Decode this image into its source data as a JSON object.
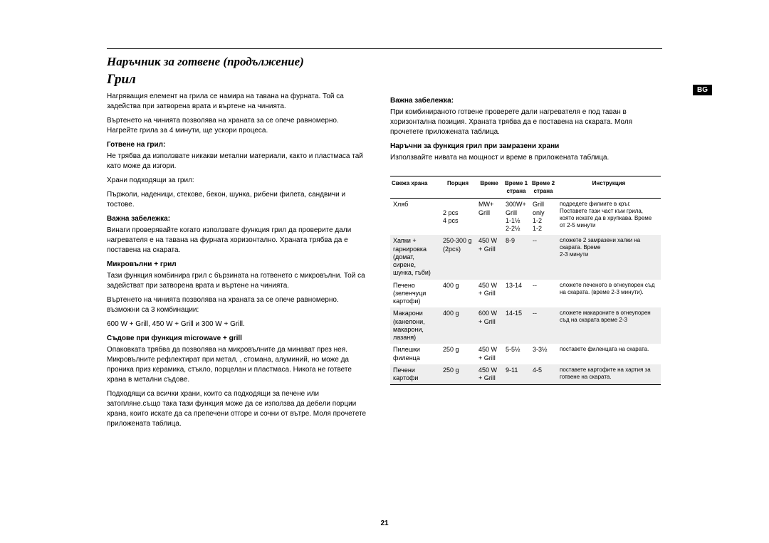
{
  "page_number": "21",
  "lang_tag": "BG",
  "title_cont": "Наръчник за готвене (продължение)",
  "section_title": "Грил",
  "left": {
    "intro1": "Нагряващия елемент на грила се намира на тавана на фурната. Той са задейства при затворена врата и въртене на чинията.",
    "intro2": "Въртенето на чинията позволява на храната за  се опече равномерно. Нагрейте грила за 4 минути, ще ускори процеса.",
    "h1": "Готвене на грил:",
    "p1a": "Не трябва да използвате никакви метални материали, както и пластмаса тай като може да изгори.",
    "p1b": "Храни подходящи за грил:",
    "p1c": "Пържоли, наденици, стекове, бекон, шунка, рибени филета, сандвичи и тостове.",
    "h2": "Важна забележка:",
    "p2": "Винаги проверявайте когато използвате функция грил да проверите дали нагревателя е на тавана на фурната хоризонтално. Храната трябва да е поставена на скарата.",
    "h3": "Микровълни  + грил",
    "p3a": "Тази функция комбинира грил с бързината на готвенето с микровълни. Той са задействат при затворена врата и въртене на чинията.",
    "p3b": "Въртенето на чинията позволява на храната за  се опече равномерно. възможни са 3 комбинации:",
    "p3c": "600 W + Grill, 450 W + Grill и 300 W + Grill.",
    "h4": "Съдове при функция  microwave + grill",
    "p4a": "Опаковката трябва да позволява на микровълните да минават през нея. Микровълните рефлектират при метал, , стомана, алуминий, но може да проника приз керамика, стъкло, порцелан и пластмаса. Никога не гответе храна в метални съдове.",
    "p4b": "Подходящи са всички храни, които са подходящи за печене или затопляне.също така тази функция може да се използва да дебели порции храна, които искате да са препечени отгоре и сочни от вътре.  Моля прочетете приложената таблица."
  },
  "right": {
    "h1": "Важна забележка:",
    "p1": "При комбинираното готвене проверете дали нагревателя е под таван в хоризонтална позиция. Храната трябва да е поставена на скарата.  Моля прочетете приложената таблица.",
    "h2": "Наръчни за функция грил при замразени храни",
    "p2": "Използвайте нивата на мощност и време в приложената таблица."
  },
  "table": {
    "headers": [
      "Свежа храна",
      "Порция",
      "Време",
      "Време 1 страна",
      "Време 2 страна",
      "Инструкция"
    ],
    "rows": [
      {
        "c0": "Хляб",
        "c1": "\n2 pcs\n4 pcs",
        "c2": "MW+\nGrill",
        "c3": "300W+\nGrill\n1-1½\n2-2½",
        "c4": "Grill\nonly\n1-2\n1-2",
        "c5": "подредете филиите в кръг. Поставете тази част към грила, която искате да в хрупкава. Време от 2-5 минути"
      },
      {
        "c0": "Хапки + гарнировка (домат, сирене, шунка, гъби)",
        "c1": "250-300 g\n(2pcs)",
        "c2": "450 W\n+ Grill",
        "c3": "8-9",
        "c4": "--",
        "c5": "сложете  2 замразени халки на скарата. Време\n2-3 минути"
      },
      {
        "c0": "Печено (зеленчуци картофи)",
        "c1": "400 g",
        "c2": "450 W\n+ Grill",
        "c3": "13-14",
        "c4": "--",
        "c5": "сложете печеното в огнеупорен съд на скарата. (време  2-3 минути)."
      },
      {
        "c0": "Макарони (канелони, макарони, лазаня)",
        "c1": "400 g",
        "c2": "600 W\n+ Grill",
        "c3": "14-15",
        "c4": "--",
        "c5": "сложете макароните в огнеупорен съд на скарата време  2-3"
      },
      {
        "c0": "Пилешки филенца",
        "c1": "250 g",
        "c2": "450 W\n+ Grill",
        "c3": "5-5½",
        "c4": "3-3½",
        "c5": "поставете филенцата на скарата."
      },
      {
        "c0": "Печени картофи",
        "c1": "250 g",
        "c2": "450 W\n+ Grill",
        "c3": "9-11",
        "c4": "4-5",
        "c5": "поставете картофите на хартия за готвене на скарата."
      }
    ]
  }
}
